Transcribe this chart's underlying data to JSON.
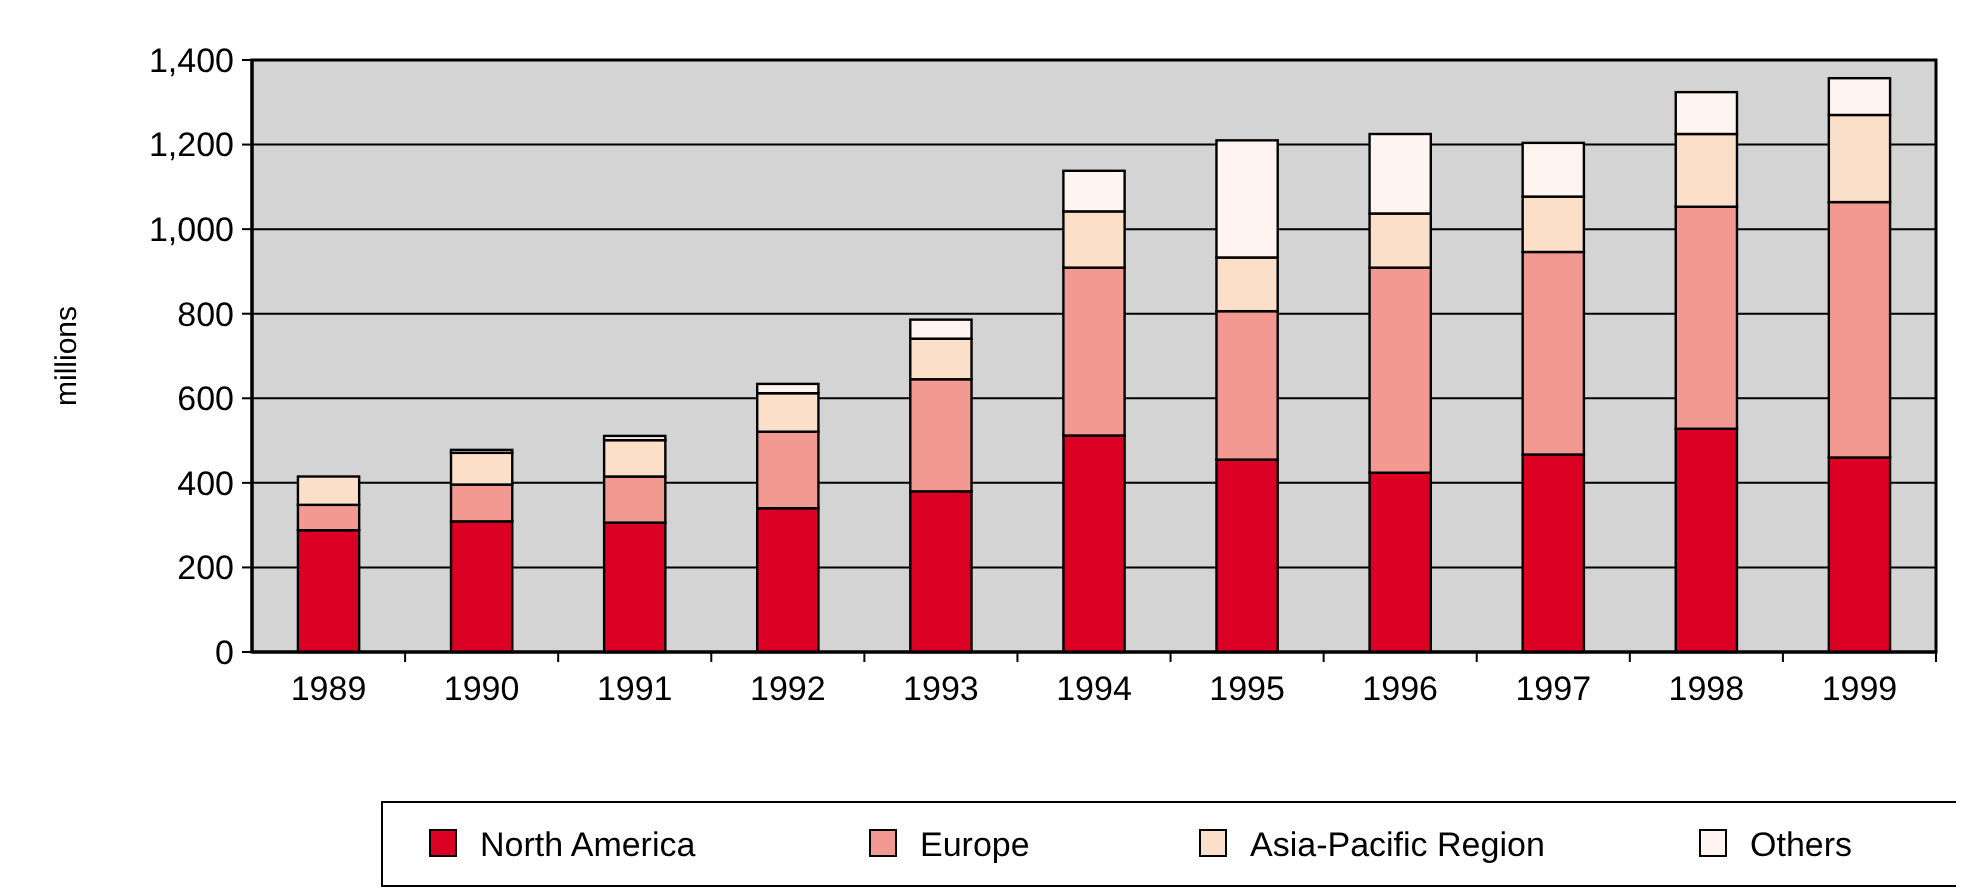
{
  "chart_data": {
    "type": "bar",
    "stacked": true,
    "ylabel": "millions",
    "categories": [
      "1989",
      "1990",
      "1991",
      "1992",
      "1993",
      "1994",
      "1995",
      "1996",
      "1997",
      "1998",
      "1999"
    ],
    "series": [
      {
        "name": "North America",
        "color": "#dd0025",
        "values": [
          288,
          309,
          306,
          340,
          380,
          512,
          455,
          424,
          467,
          528,
          460
        ]
      },
      {
        "name": "Europe",
        "color": "#f29a91",
        "values": [
          60,
          87,
          109,
          181,
          265,
          397,
          351,
          485,
          479,
          525,
          604
        ]
      },
      {
        "name": "Asia-Pacific Region",
        "color": "#fbdfc8",
        "values": [
          67,
          75,
          86,
          91,
          96,
          133,
          127,
          128,
          131,
          172,
          206
        ]
      },
      {
        "name": "Others",
        "color": "#fff4f0",
        "values": [
          0,
          7,
          10,
          22,
          45,
          96,
          277,
          188,
          127,
          99,
          87
        ]
      }
    ],
    "ylim": [
      0,
      1400
    ],
    "yticks": [
      {
        "value": 0,
        "label": "0"
      },
      {
        "value": 200,
        "label": "200"
      },
      {
        "value": 400,
        "label": "400"
      },
      {
        "value": 600,
        "label": "600"
      },
      {
        "value": 800,
        "label": "800"
      },
      {
        "value": 1000,
        "label": "1,000"
      },
      {
        "value": 1200,
        "label": "1,200"
      },
      {
        "value": 1400,
        "label": "1,400"
      }
    ],
    "grid": "y",
    "legend": "bottom"
  }
}
